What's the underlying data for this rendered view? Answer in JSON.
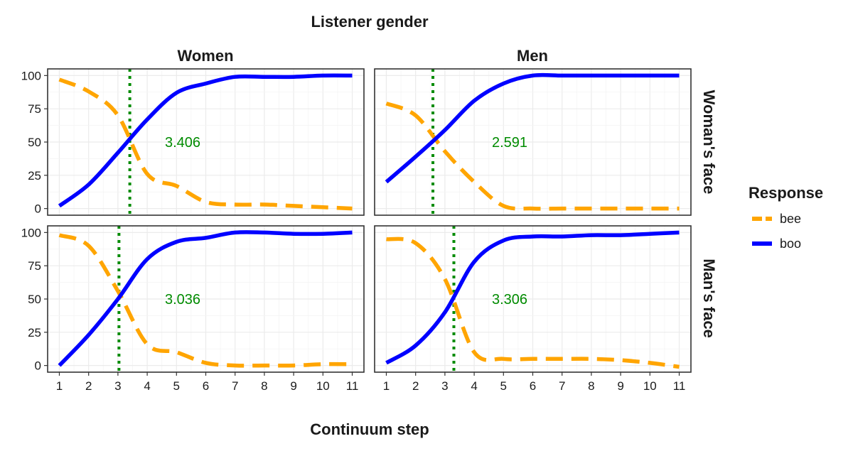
{
  "chart_data": {
    "type": "line",
    "title": "Listener gender",
    "xlabel": "Continuum step",
    "ylabel": "",
    "x": [
      1,
      2,
      3,
      4,
      5,
      6,
      7,
      8,
      9,
      10,
      11
    ],
    "x_ticks": [
      "1",
      "2",
      "3",
      "4",
      "5",
      "6",
      "7",
      "8",
      "9",
      "10",
      "11"
    ],
    "y_ticks": [
      "0",
      "25",
      "50",
      "75",
      "100"
    ],
    "xlim": [
      0.6,
      11.4
    ],
    "ylim": [
      -5,
      105
    ],
    "column_facets": [
      "Women",
      "Men"
    ],
    "row_facets": [
      "Woman's face",
      "Man's face"
    ],
    "legend": {
      "title": "Response",
      "position": "right",
      "items": [
        {
          "name": "bee",
          "color": "#FFA500",
          "style": "dashed"
        },
        {
          "name": "boo",
          "color": "#0000FF",
          "style": "solid"
        }
      ]
    },
    "boundary_color": "#008B00",
    "panels": [
      {
        "column": "Women",
        "row": "Woman's face",
        "boundary": 3.406,
        "boundary_label": "3.406",
        "series": [
          {
            "name": "bee",
            "values": [
              97,
              88,
              70,
              26,
              17,
              5,
              3,
              3,
              2,
              1,
              0
            ]
          },
          {
            "name": "boo",
            "values": [
              2,
              18,
              42,
              67,
              87,
              94,
              99,
              99,
              99,
              100,
              100
            ]
          }
        ]
      },
      {
        "column": "Men",
        "row": "Woman's face",
        "boundary": 2.591,
        "boundary_label": "2.591",
        "series": [
          {
            "name": "bee",
            "values": [
              79,
              70,
              43,
              20,
              2,
              0,
              0,
              0,
              0,
              0,
              0
            ]
          },
          {
            "name": "boo",
            "values": [
              20,
              39,
              59,
              81,
              94,
              100,
              100,
              100,
              100,
              100,
              100
            ]
          }
        ]
      },
      {
        "column": "Women",
        "row": "Man's face",
        "boundary": 3.036,
        "boundary_label": "3.036",
        "series": [
          {
            "name": "bee",
            "values": [
              98,
              90,
              56,
              16,
              10,
              2,
              0,
              0,
              0,
              1,
              1
            ]
          },
          {
            "name": "boo",
            "values": [
              0,
              23,
              50,
              80,
              93,
              96,
              100,
              100,
              99,
              99,
              100
            ]
          }
        ]
      },
      {
        "column": "Men",
        "row": "Man's face",
        "boundary": 3.306,
        "boundary_label": "3.306",
        "series": [
          {
            "name": "bee",
            "values": [
              95,
              92,
              65,
              10,
              5,
              5,
              5,
              5,
              4,
              2,
              -1
            ]
          },
          {
            "name": "boo",
            "values": [
              2,
              15,
              40,
              78,
              94,
              97,
              97,
              98,
              98,
              99,
              100
            ]
          }
        ]
      }
    ]
  }
}
